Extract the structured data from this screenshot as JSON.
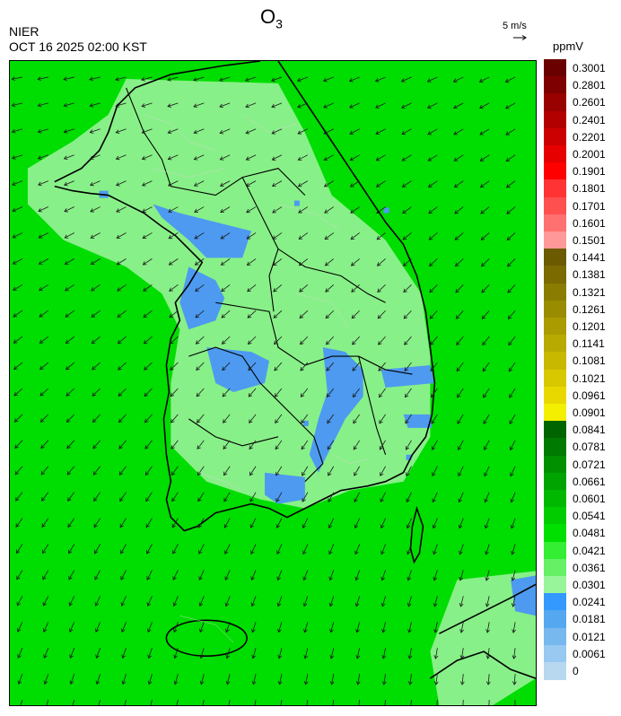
{
  "header": {
    "title_main": "O",
    "title_sub": "3",
    "agency": "NIER",
    "datetime": "OCT 16 2025 02:00 KST",
    "wind_scale_label": "5 m/s",
    "unit": "ppmV"
  },
  "legend": {
    "labels": [
      "0.3001",
      "0.2801",
      "0.2601",
      "0.2401",
      "0.2201",
      "0.2001",
      "0.1901",
      "0.1801",
      "0.1701",
      "0.1601",
      "0.1501",
      "0.1441",
      "0.1381",
      "0.1321",
      "0.1261",
      "0.1201",
      "0.1141",
      "0.1081",
      "0.1021",
      "0.0961",
      "0.0901",
      "0.0841",
      "0.0781",
      "0.0721",
      "0.0661",
      "0.0601",
      "0.0541",
      "0.0481",
      "0.0421",
      "0.0361",
      "0.0301",
      "0.0241",
      "0.0181",
      "0.0121",
      "0.0061",
      "0"
    ],
    "colors": [
      "#6b0000",
      "#7f0000",
      "#990000",
      "#b20000",
      "#cc0000",
      "#e60000",
      "#ff0000",
      "#ff3333",
      "#ff5050",
      "#ff7070",
      "#ff9999",
      "#6b5a00",
      "#7a6a00",
      "#8a7c00",
      "#9a8c00",
      "#aa9c00",
      "#b8aa00",
      "#c8b800",
      "#d8c800",
      "#e8d800",
      "#f4ee00",
      "#006400",
      "#007a00",
      "#009000",
      "#00a400",
      "#00b800",
      "#00cc00",
      "#00e000",
      "#33ee33",
      "#66f066",
      "#99f599",
      "#3399ff",
      "#55a8f0",
      "#77b8ee",
      "#99c9f0",
      "#b8d8f0"
    ]
  },
  "map": {
    "background_color": "#00dd00",
    "low_ozone_color": "#4d9af0",
    "mid_ozone_color": "#88f088",
    "boundary_color": "#000000",
    "wind_arrow_color": "#1a1a1a"
  }
}
